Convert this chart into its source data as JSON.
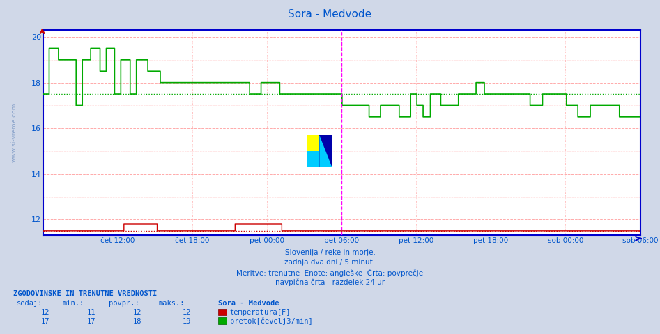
{
  "title": "Sora - Medvode",
  "title_color": "#0055cc",
  "bg_color": "#d0d8e8",
  "plot_bg_color": "#ffffff",
  "axis_color": "#0000cc",
  "grid_color_major": "#ffaaaa",
  "grid_color_minor": "#ffdddd",
  "ylim": [
    11.3,
    20.3
  ],
  "yticks": [
    12,
    14,
    16,
    18,
    20
  ],
  "xlabel_color": "#0055cc",
  "xtick_labels": [
    "čet 12:00",
    "čet 18:00",
    "pet 00:00",
    "pet 06:00",
    "pet 12:00",
    "pet 18:00",
    "sob 00:00",
    "sob 06:00"
  ],
  "xtick_positions": [
    0.125,
    0.25,
    0.375,
    0.5,
    0.625,
    0.75,
    0.875,
    1.0
  ],
  "n_points": 576,
  "temp_avg": 11.5,
  "flow_avg": 17.5,
  "temp_color": "#cc0000",
  "flow_color": "#00aa00",
  "magenta_vline_positions": [
    0.5,
    1.0
  ],
  "watermark": "www.si-vreme.com",
  "footer_lines": [
    "Slovenija / reke in morje.",
    "zadnja dva dni / 5 minut.",
    "Meritve: trenutne  Enote: angleške  Črta: povprečje",
    "navpična črta - razdelek 24 ur"
  ],
  "legend_header": "ZGODOVINSKE IN TRENUTNE VREDNOSTI",
  "legend_cols": [
    "sedaj:",
    "min.:",
    "povpr.:",
    "maks.:",
    "Sora - Medvode"
  ],
  "temp_row": [
    "12",
    "11",
    "12",
    "12",
    "temperatura[F]"
  ],
  "flow_row": [
    "17",
    "17",
    "18",
    "19",
    "pretok[čevelj3/min]"
  ],
  "left_label": "www.si-vreme.com"
}
